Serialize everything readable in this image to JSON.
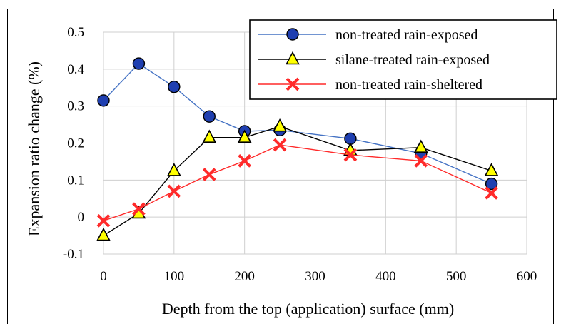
{
  "chart_data": {
    "type": "line",
    "xlabel": "Depth from the top (application) surface (mm)",
    "ylabel": "Expansion ratio change (%)",
    "xlim": [
      0,
      600
    ],
    "ylim": [
      -0.1,
      0.5
    ],
    "xticks": [
      0,
      100,
      200,
      300,
      400,
      500,
      600
    ],
    "yticks": [
      -0.1,
      0,
      0.1,
      0.2,
      0.3,
      0.4,
      0.5
    ],
    "grid": true,
    "legend": "top-right",
    "series": [
      {
        "name": "non-treated rain-exposed",
        "marker": "circle",
        "color": "#4472c4",
        "marker_fill": "#1f3fb0",
        "x": [
          0,
          50,
          100,
          150,
          200,
          250,
          350,
          450,
          550
        ],
        "y": [
          0.315,
          0.415,
          0.352,
          0.272,
          0.232,
          0.235,
          0.212,
          0.172,
          0.09
        ]
      },
      {
        "name": "silane-treated rain-exposed",
        "marker": "triangle",
        "color": "#000000",
        "marker_fill": "#ffff00",
        "x": [
          0,
          50,
          100,
          150,
          200,
          250,
          350,
          450,
          550
        ],
        "y": [
          -0.05,
          0.01,
          0.125,
          0.215,
          0.215,
          0.245,
          0.18,
          0.188,
          0.125
        ]
      },
      {
        "name": "non-treated rain-sheltered",
        "marker": "x",
        "color": "#ff2a2a",
        "marker_fill": "#ff2a2a",
        "x": [
          0,
          50,
          100,
          150,
          200,
          250,
          350,
          450,
          550
        ],
        "y": [
          -0.01,
          0.022,
          0.07,
          0.115,
          0.152,
          0.195,
          0.168,
          0.152,
          0.065
        ]
      }
    ]
  }
}
